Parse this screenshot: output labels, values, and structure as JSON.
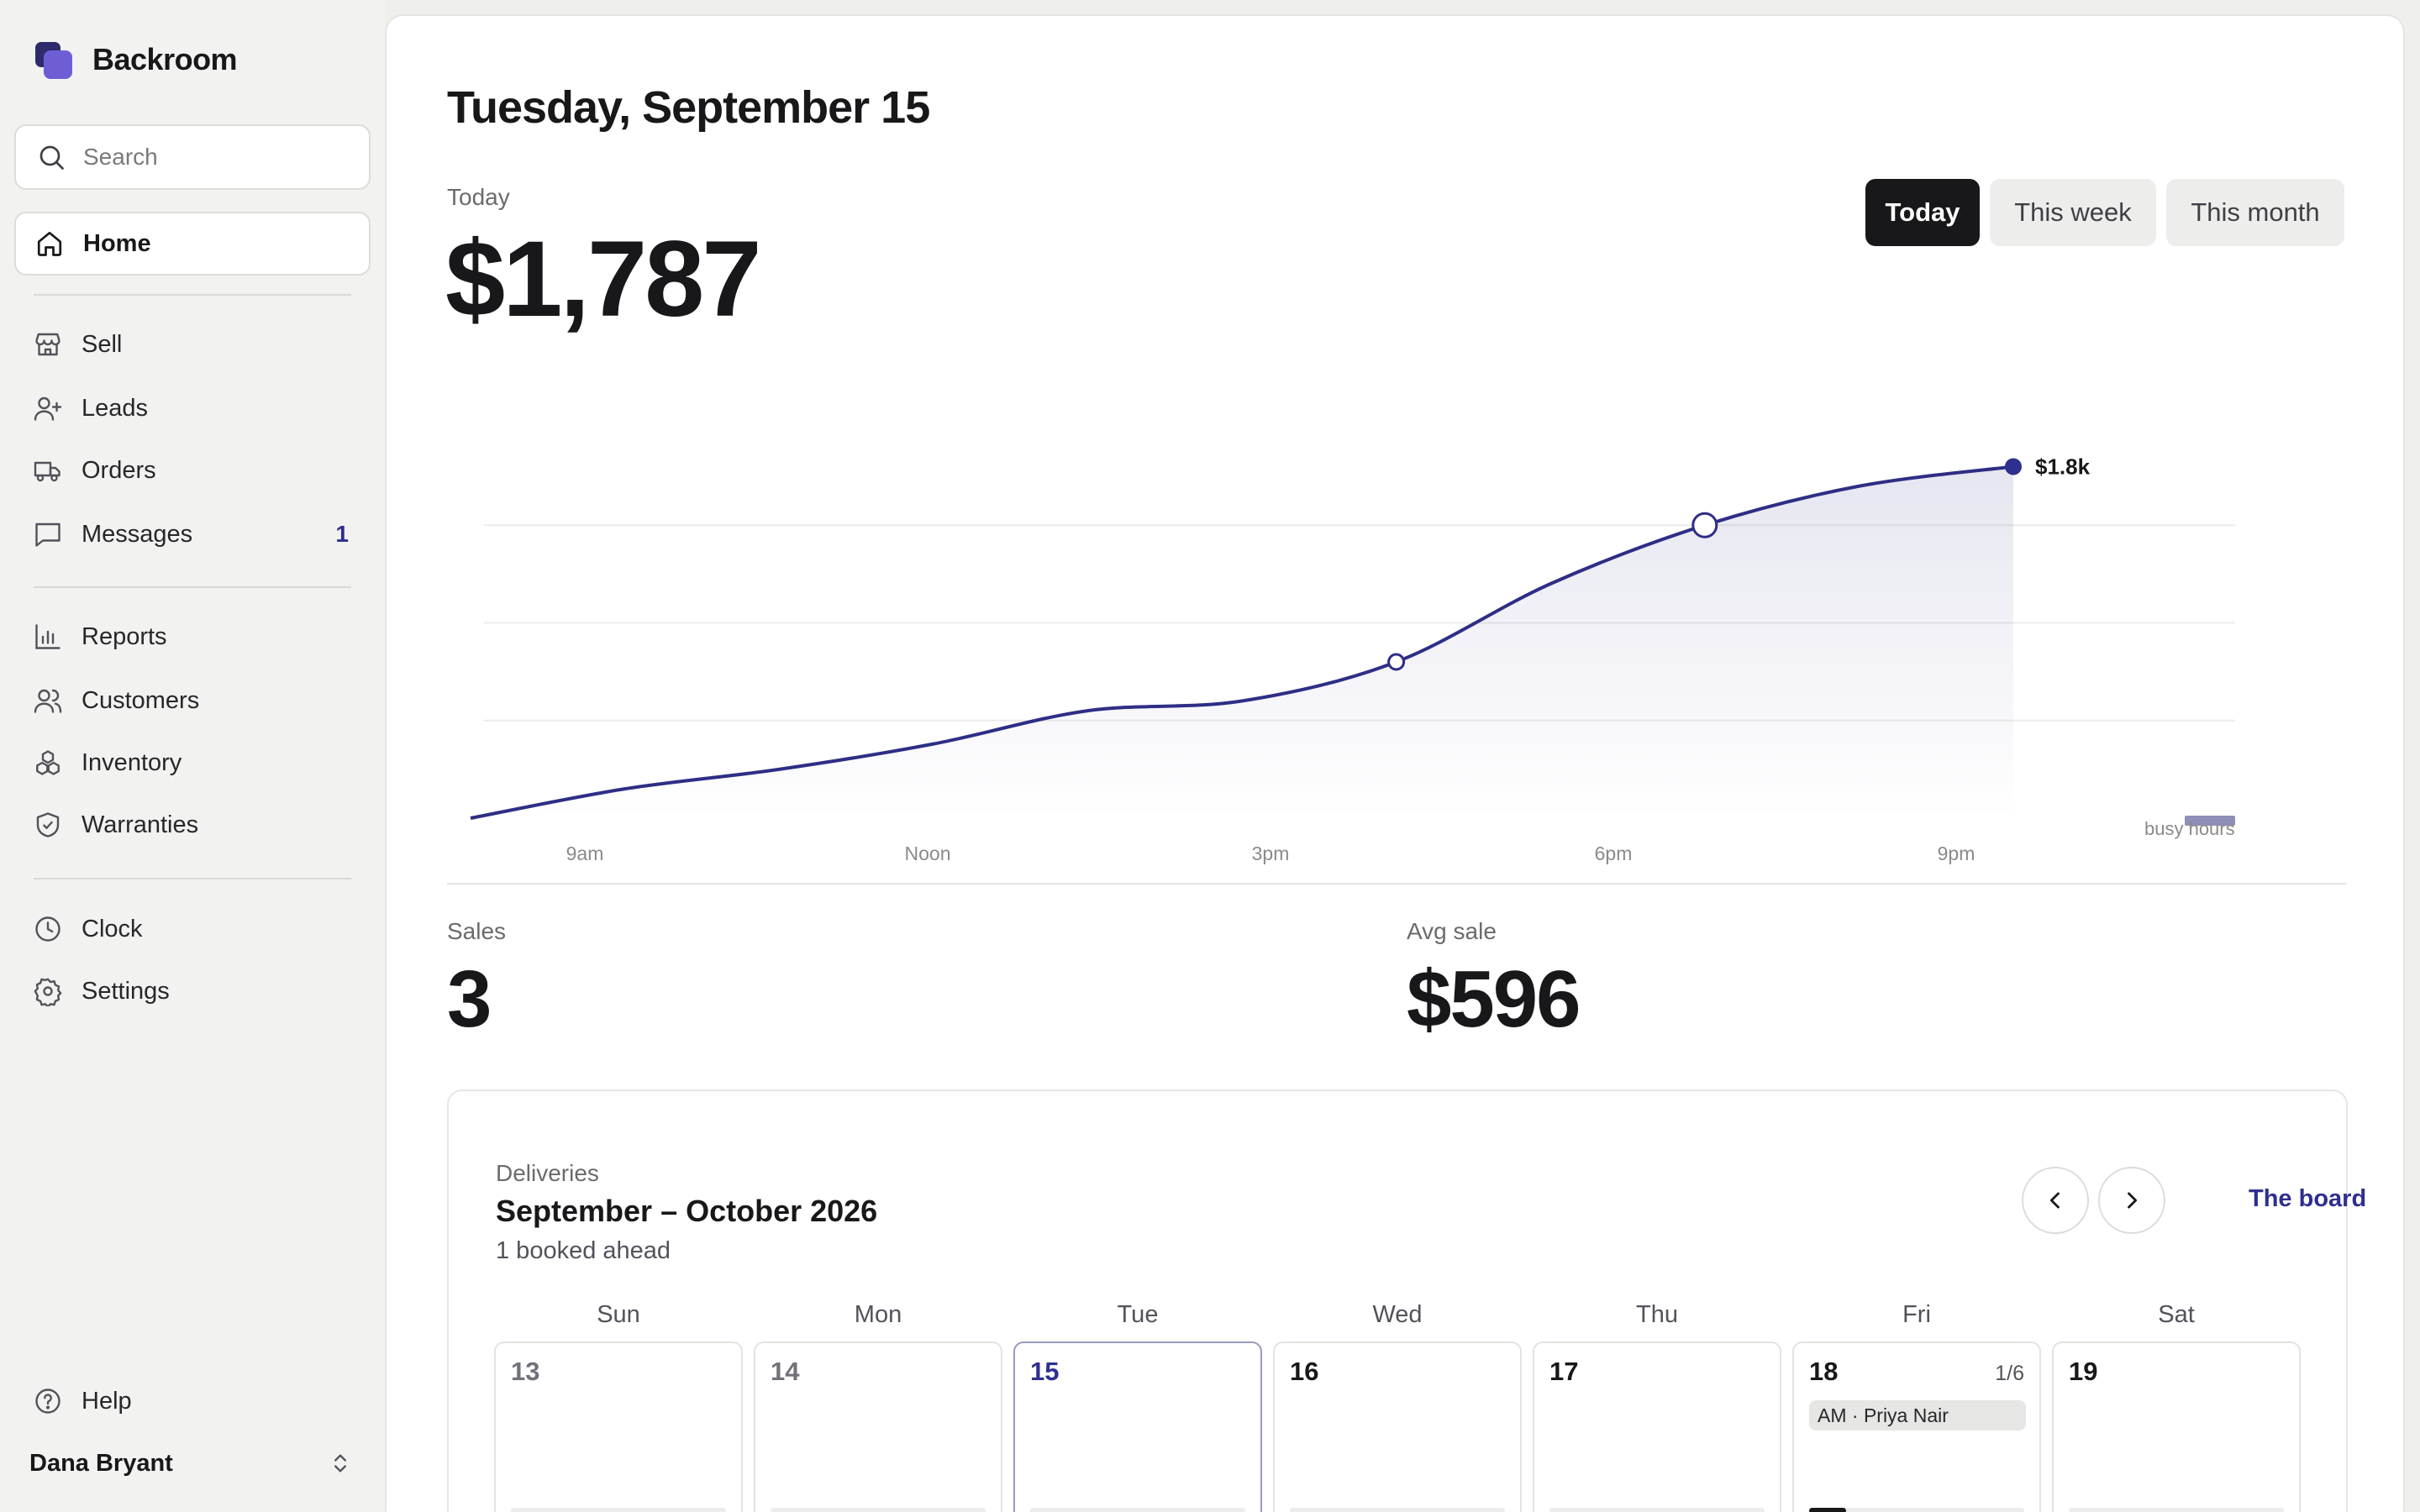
{
  "app": {
    "name": "Backroom"
  },
  "search": {
    "placeholder": "Search"
  },
  "nav": {
    "home": "Home",
    "sell": "Sell",
    "leads": "Leads",
    "orders": "Orders",
    "messages": "Messages",
    "messages_badge": "1",
    "reports": "Reports",
    "customers": "Customers",
    "inventory": "Inventory",
    "warranties": "Warranties",
    "clock": "Clock",
    "settings": "Settings",
    "help": "Help"
  },
  "user": {
    "name": "Dana Bryant"
  },
  "page": {
    "title": "Tuesday, September 15"
  },
  "summary": {
    "label": "Today",
    "amount": "$1,787"
  },
  "range_tabs": [
    "Today",
    "This week",
    "This month"
  ],
  "range_selected": "Today",
  "chart_data": {
    "type": "line",
    "x_ticks": [
      "9am",
      "Noon",
      "3pm",
      "6pm",
      "9pm"
    ],
    "series": [
      {
        "values_cumulative_k": [
          0,
          0.15,
          0.25,
          0.38,
          0.55,
          0.6,
          0.8,
          1.2,
          1.5,
          1.7,
          1.8
        ]
      }
    ],
    "end_label": "$1.8k",
    "extra_label": "busy hours",
    "grid": true,
    "color": "#2e2e86"
  },
  "stats": {
    "sales_label": "Sales",
    "sales_value": "3",
    "avg_label": "Avg sale",
    "avg_value": "$596"
  },
  "deliveries": {
    "label": "Deliveries",
    "title": "September – October 2026",
    "subtitle": "1 booked ahead",
    "board_link": "The board",
    "weekdays": [
      "Sun",
      "Mon",
      "Tue",
      "Wed",
      "Thu",
      "Fri",
      "Sat"
    ],
    "days": [
      {
        "num": "13",
        "state": "past"
      },
      {
        "num": "14",
        "state": "past"
      },
      {
        "num": "15",
        "state": "today"
      },
      {
        "num": "16",
        "state": "future"
      },
      {
        "num": "17",
        "state": "future"
      },
      {
        "num": "18",
        "state": "future",
        "count": "1/6",
        "booking": "AM · Priya Nair",
        "fill": 0.17
      },
      {
        "num": "19",
        "state": "future"
      }
    ]
  },
  "colors": {
    "accent": "#2f2f8f",
    "brand_dark": "#2f2a6b",
    "brand_light": "#6e5ed6"
  }
}
